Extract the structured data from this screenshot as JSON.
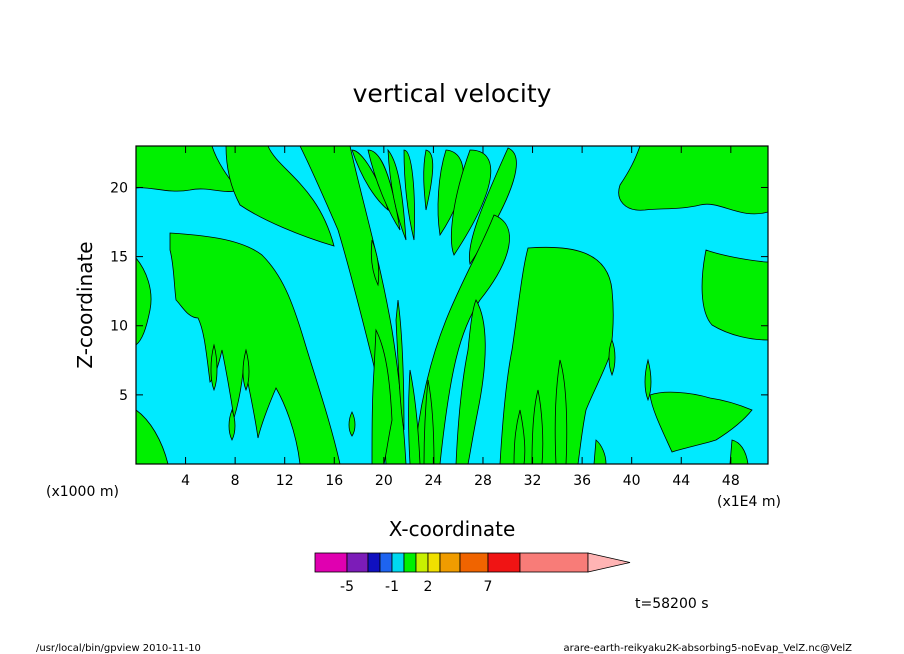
{
  "chart_data": {
    "type": "contour",
    "title": "vertical velocity",
    "xlabel": "X-coordinate",
    "ylabel": "Z-coordinate",
    "x_unit": "(x1E4 m)",
    "y_unit": "(x1000 m)",
    "xlim": [
      0,
      51
    ],
    "ylim": [
      0,
      23
    ],
    "x_ticks": [
      4,
      8,
      12,
      16,
      20,
      24,
      28,
      32,
      36,
      40,
      44,
      48
    ],
    "y_ticks": [
      5,
      10,
      15,
      20
    ],
    "colorbar": {
      "levels": [
        -7,
        -5,
        -3,
        -2,
        -1,
        0,
        1,
        2,
        3,
        5,
        7,
        9,
        12
      ],
      "colors": [
        "#e000b0",
        "#7c1cb8",
        "#1010c0",
        "#1e64f0",
        "#00d8f0",
        "#00f000",
        "#c8f000",
        "#f0e000",
        "#f09c00",
        "#f06400",
        "#f01414",
        "#f87c78",
        "#ffb4b4"
      ],
      "labels": [
        "-5",
        "-1",
        "2",
        "7"
      ]
    },
    "regions": {
      "background_color": "#00eaff",
      "positive_color": "#00f000"
    },
    "time_label": "t=58200 s"
  },
  "footer": {
    "left": "/usr/local/bin/gpview  2010-11-10",
    "right": "arare-earth-reikyaku2K-absorbing5-noEvap_VelZ.nc@VelZ"
  }
}
